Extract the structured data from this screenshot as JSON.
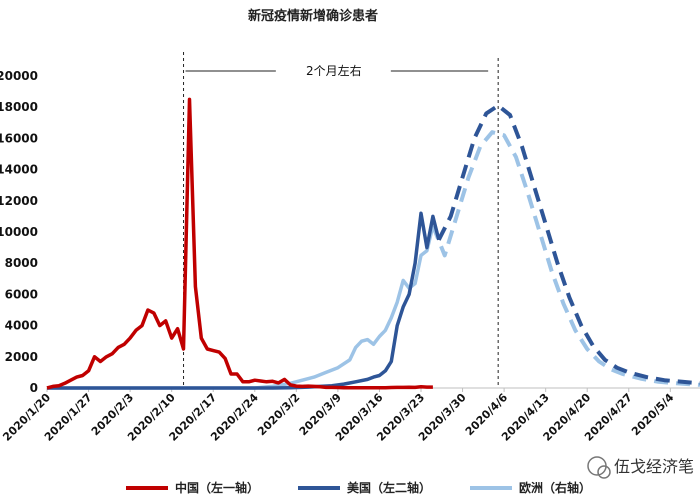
{
  "chart_data": {
    "type": "line",
    "title": "新冠疫情新增确诊患者",
    "x_tick_labels": [
      "2020/1/20",
      "2020/1/27",
      "2020/2/3",
      "2020/2/10",
      "2020/2/17",
      "2020/2/24",
      "2020/3/2",
      "2020/3/9",
      "2020/3/16",
      "2020/3/23",
      "2020/3/30",
      "2020/4/6",
      "2020/4/13",
      "2020/4/20",
      "2020/4/27",
      "2020/5/4"
    ],
    "y_left_ticks": [
      0,
      2000,
      4000,
      6000,
      8000,
      10000,
      12000,
      14000,
      16000,
      18000,
      20000
    ],
    "y_left_tick_labels": [
      "0",
      "2000",
      "4000",
      "6000",
      "8000",
      "10000",
      "12000",
      "14000",
      "16000",
      "18000",
      "20000"
    ],
    "ylim": [
      0,
      20000
    ],
    "x_start": "2020/1/20",
    "x_end": "2020/5/9",
    "annotation": {
      "text": "2个月左右",
      "from_date": "2020/2/12",
      "to_date": "2020/4/5"
    },
    "series": [
      {
        "name": "中国（左一轴）",
        "color": "#c00000",
        "style": "solid",
        "points": [
          [
            "2020/1/20",
            0
          ],
          [
            "2020/1/21",
            100
          ],
          [
            "2020/1/22",
            150
          ],
          [
            "2020/1/23",
            300
          ],
          [
            "2020/1/24",
            500
          ],
          [
            "2020/1/25",
            700
          ],
          [
            "2020/1/26",
            800
          ],
          [
            "2020/1/27",
            1100
          ],
          [
            "2020/1/28",
            2000
          ],
          [
            "2020/1/29",
            1700
          ],
          [
            "2020/1/30",
            2000
          ],
          [
            "2020/1/31",
            2200
          ],
          [
            "2020/2/1",
            2600
          ],
          [
            "2020/2/2",
            2800
          ],
          [
            "2020/2/3",
            3200
          ],
          [
            "2020/2/4",
            3700
          ],
          [
            "2020/2/5",
            4000
          ],
          [
            "2020/2/6",
            5000
          ],
          [
            "2020/2/7",
            4800
          ],
          [
            "2020/2/8",
            4000
          ],
          [
            "2020/2/9",
            4300
          ],
          [
            "2020/2/10",
            3200
          ],
          [
            "2020/2/11",
            3800
          ],
          [
            "2020/2/12",
            2500
          ],
          [
            "2020/2/13",
            18500
          ],
          [
            "2020/2/14",
            6500
          ],
          [
            "2020/2/15",
            3200
          ],
          [
            "2020/2/16",
            2500
          ],
          [
            "2020/2/17",
            2400
          ],
          [
            "2020/2/18",
            2300
          ],
          [
            "2020/2/19",
            1900
          ],
          [
            "2020/2/20",
            900
          ],
          [
            "2020/2/21",
            900
          ],
          [
            "2020/2/22",
            400
          ],
          [
            "2020/2/23",
            400
          ],
          [
            "2020/2/24",
            500
          ],
          [
            "2020/2/25",
            450
          ],
          [
            "2020/2/26",
            400
          ],
          [
            "2020/2/27",
            430
          ],
          [
            "2020/2/28",
            330
          ],
          [
            "2020/2/29",
            550
          ],
          [
            "2020/3/1",
            200
          ],
          [
            "2020/3/2",
            120
          ],
          [
            "2020/3/3",
            100
          ],
          [
            "2020/3/4",
            120
          ],
          [
            "2020/3/5",
            100
          ],
          [
            "2020/3/6",
            80
          ],
          [
            "2020/3/7",
            40
          ],
          [
            "2020/3/8",
            40
          ],
          [
            "2020/3/9",
            30
          ],
          [
            "2020/3/10",
            20
          ],
          [
            "2020/3/11",
            20
          ],
          [
            "2020/3/12",
            15
          ],
          [
            "2020/3/13",
            15
          ],
          [
            "2020/3/14",
            20
          ],
          [
            "2020/3/15",
            20
          ],
          [
            "2020/3/16",
            20
          ],
          [
            "2020/3/17",
            15
          ],
          [
            "2020/3/18",
            30
          ],
          [
            "2020/3/19",
            40
          ],
          [
            "2020/3/20",
            40
          ],
          [
            "2020/3/21",
            45
          ],
          [
            "2020/3/22",
            40
          ],
          [
            "2020/3/23",
            80
          ],
          [
            "2020/3/24",
            60
          ],
          [
            "2020/3/25",
            60
          ]
        ]
      },
      {
        "name": "美国（左二轴）",
        "color": "#2e5597",
        "style": "solid",
        "points": [
          [
            "2020/1/20",
            0
          ],
          [
            "2020/2/27",
            0
          ],
          [
            "2020/3/1",
            20
          ],
          [
            "2020/3/4",
            60
          ],
          [
            "2020/3/6",
            100
          ],
          [
            "2020/3/8",
            150
          ],
          [
            "2020/3/10",
            250
          ],
          [
            "2020/3/12",
            400
          ],
          [
            "2020/3/14",
            550
          ],
          [
            "2020/3/15",
            700
          ],
          [
            "2020/3/16",
            800
          ],
          [
            "2020/3/17",
            1100
          ],
          [
            "2020/3/18",
            1700
          ],
          [
            "2020/3/19",
            4000
          ],
          [
            "2020/3/20",
            5200
          ],
          [
            "2020/3/21",
            6000
          ],
          [
            "2020/3/22",
            8000
          ],
          [
            "2020/3/23",
            11200
          ],
          [
            "2020/3/24",
            9000
          ],
          [
            "2020/3/25",
            11000
          ],
          [
            "2020/3/26",
            9500
          ]
        ]
      },
      {
        "name": "美国（左二轴）预测",
        "color": "#2e5597",
        "style": "dashed",
        "points": [
          [
            "2020/3/26",
            9500
          ],
          [
            "2020/3/28",
            11000
          ],
          [
            "2020/3/30",
            13500
          ],
          [
            "2020/4/1",
            16000
          ],
          [
            "2020/4/3",
            17600
          ],
          [
            "2020/4/5",
            18100
          ],
          [
            "2020/4/7",
            17500
          ],
          [
            "2020/4/9",
            15500
          ],
          [
            "2020/4/11",
            13000
          ],
          [
            "2020/4/13",
            10500
          ],
          [
            "2020/4/15",
            8000
          ],
          [
            "2020/4/17",
            5800
          ],
          [
            "2020/4/19",
            4000
          ],
          [
            "2020/4/21",
            2700
          ],
          [
            "2020/4/23",
            1800
          ],
          [
            "2020/4/25",
            1300
          ],
          [
            "2020/4/27",
            1000
          ],
          [
            "2020/4/30",
            700
          ],
          [
            "2020/5/3",
            500
          ],
          [
            "2020/5/6",
            400
          ],
          [
            "2020/5/9",
            300
          ]
        ]
      },
      {
        "name": "欧洲（右轴）",
        "color": "#9dc3e6",
        "style": "solid",
        "points": [
          [
            "2020/1/20",
            0
          ],
          [
            "2020/2/24",
            0
          ],
          [
            "2020/2/27",
            100
          ],
          [
            "2020/3/1",
            300
          ],
          [
            "2020/3/3",
            500
          ],
          [
            "2020/3/5",
            700
          ],
          [
            "2020/3/7",
            1000
          ],
          [
            "2020/3/9",
            1300
          ],
          [
            "2020/3/11",
            1800
          ],
          [
            "2020/3/12",
            2600
          ],
          [
            "2020/3/13",
            3000
          ],
          [
            "2020/3/14",
            3100
          ],
          [
            "2020/3/15",
            2800
          ],
          [
            "2020/3/16",
            3300
          ],
          [
            "2020/3/17",
            3700
          ],
          [
            "2020/3/18",
            4500
          ],
          [
            "2020/3/19",
            5500
          ],
          [
            "2020/3/20",
            6900
          ],
          [
            "2020/3/21",
            6400
          ],
          [
            "2020/3/22",
            6700
          ],
          [
            "2020/3/23",
            8500
          ],
          [
            "2020/3/24",
            8800
          ],
          [
            "2020/3/25",
            10400
          ]
        ]
      },
      {
        "name": "欧洲（右轴）预测",
        "color": "#9dc3e6",
        "style": "dashed",
        "points": [
          [
            "2020/3/25",
            10400
          ],
          [
            "2020/3/27",
            8500
          ],
          [
            "2020/3/29",
            11000
          ],
          [
            "2020/3/31",
            13500
          ],
          [
            "2020/4/2",
            15500
          ],
          [
            "2020/4/4",
            16400
          ],
          [
            "2020/4/6",
            16200
          ],
          [
            "2020/4/8",
            14800
          ],
          [
            "2020/4/10",
            12500
          ],
          [
            "2020/4/12",
            10000
          ],
          [
            "2020/4/14",
            7500
          ],
          [
            "2020/4/16",
            5400
          ],
          [
            "2020/4/18",
            3700
          ],
          [
            "2020/4/20",
            2500
          ],
          [
            "2020/4/22",
            1700
          ],
          [
            "2020/4/24",
            1200
          ],
          [
            "2020/4/26",
            900
          ],
          [
            "2020/4/29",
            600
          ],
          [
            "2020/5/2",
            400
          ],
          [
            "2020/5/5",
            300
          ],
          [
            "2020/5/9",
            200
          ]
        ]
      }
    ],
    "legend": [
      {
        "label": "中国（左一轴）",
        "color": "#c00000"
      },
      {
        "label": "美国（左二轴）",
        "color": "#2e5597"
      },
      {
        "label": "欧洲（右轴）",
        "color": "#9dc3e6"
      }
    ],
    "legend_position": "bottom",
    "grid": false
  },
  "watermark": {
    "text": "伍戈经济笔"
  }
}
